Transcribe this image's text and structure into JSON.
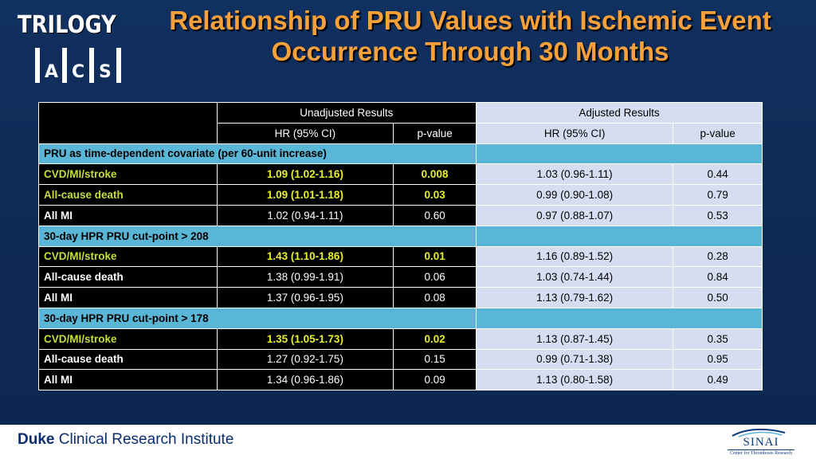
{
  "logo": {
    "word": "TRILOGY",
    "letters": [
      "A",
      "C",
      "S"
    ]
  },
  "title": "Relationship of PRU Values with Ischemic Event Occurrence Through 30 Months",
  "unadjusted": {
    "group_header": "Unadjusted Results",
    "col_hr": "HR (95% CI)",
    "col_p": "p-value"
  },
  "adjusted": {
    "group_header": "Adjusted Results",
    "col_hr": "HR (95% CI)",
    "col_p": "p-value"
  },
  "sections": [
    {
      "title": "PRU as time-dependent covariate (per 60-unit increase)",
      "rows": [
        {
          "label": "CVD/MI/stroke",
          "hr": "1.09 (1.02-1.16)",
          "p": "0.008",
          "highlight": true,
          "adj_hr": "1.03 (0.96-1.11)",
          "adj_p": "0.44"
        },
        {
          "label": "All-cause death",
          "hr": "1.09 (1.01-1.18)",
          "p": "0.03",
          "highlight": true,
          "adj_hr": "0.99 (0.90-1.08)",
          "adj_p": "0.79"
        },
        {
          "label": "All MI",
          "hr": "1.02 (0.94-1.11)",
          "p": "0.60",
          "highlight": false,
          "adj_hr": "0.97 (0.88-1.07)",
          "adj_p": "0.53"
        }
      ]
    },
    {
      "title": "30-day HPR PRU cut-point > 208",
      "rows": [
        {
          "label": "CVD/MI/stroke",
          "hr": "1.43 (1.10-1.86)",
          "p": "0.01",
          "highlight": true,
          "adj_hr": "1.16 (0.89-1.52)",
          "adj_p": "0.28"
        },
        {
          "label": "All-cause death",
          "hr": "1.38 (0.99-1.91)",
          "p": "0.06",
          "highlight": false,
          "adj_hr": "1.03 (0.74-1.44)",
          "adj_p": "0.84"
        },
        {
          "label": "All MI",
          "hr": "1.37 (0.96-1.95)",
          "p": "0.08",
          "highlight": false,
          "adj_hr": "1.13 (0.79-1.62)",
          "adj_p": "0.50"
        }
      ]
    },
    {
      "title": "30-day HPR PRU cut-point > 178",
      "rows": [
        {
          "label": "CVD/MI/stroke",
          "hr": "1.35 (1.05-1.73)",
          "p": "0.02",
          "highlight": true,
          "adj_hr": "1.13 (0.87-1.45)",
          "adj_p": "0.35"
        },
        {
          "label": "All-cause death",
          "hr": "1.27 (0.92-1.75)",
          "p": "0.15",
          "highlight": false,
          "adj_hr": "0.99 (0.71-1.38)",
          "adj_p": "0.95"
        },
        {
          "label": "All MI",
          "hr": "1.34 (0.96-1.86)",
          "p": "0.09",
          "highlight": false,
          "adj_hr": "1.13 (0.80-1.58)",
          "adj_p": "0.49"
        }
      ]
    }
  ],
  "footer": {
    "duke_bold": "Duke",
    "duke_rest": " Clinical Research Institute",
    "sinai_name": "SINAI",
    "sinai_sub": "Center for Thrombosis Research"
  },
  "colors": {
    "background": "#0f2d57",
    "title": "#f7a13a",
    "section_band": "#5ab6d6",
    "adjusted_cells": "#d5def0",
    "highlight_label": "#c8dd3a",
    "highlight_value": "#e9ef2e"
  }
}
